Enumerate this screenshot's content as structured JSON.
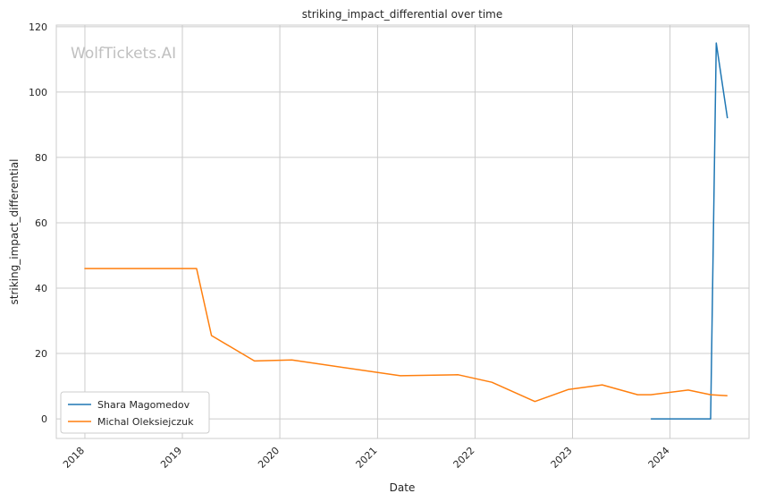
{
  "chart_data": {
    "type": "line",
    "title": "striking_impact_differential over time",
    "xlabel": "Date",
    "ylabel": "striking_impact_differential",
    "watermark": "WolfTickets.AI",
    "x_ticks": [
      "2018",
      "2019",
      "2020",
      "2021",
      "2022",
      "2023",
      "2024"
    ],
    "y_ticks": [
      0,
      20,
      40,
      60,
      80,
      100,
      120
    ],
    "xlim": [
      "2017-09-16",
      "2024-10-23"
    ],
    "ylim": [
      -6,
      120.5
    ],
    "grid": true,
    "legend_position": "lower-left",
    "series": [
      {
        "name": "Shara Magomedov",
        "color": "#1f77b4",
        "points": [
          {
            "x": "2023-10-21",
            "y": 0
          },
          {
            "x": "2024-06-01",
            "y": 0
          },
          {
            "x": "2024-06-22",
            "y": 115
          },
          {
            "x": "2024-08-03",
            "y": 92
          }
        ]
      },
      {
        "name": "Michal Oleksiejczuk",
        "color": "#ff7f0e",
        "points": [
          {
            "x": "2017-12-30",
            "y": 46
          },
          {
            "x": "2019-02-23",
            "y": 46
          },
          {
            "x": "2019-04-20",
            "y": 25.5
          },
          {
            "x": "2019-09-28",
            "y": 17.7
          },
          {
            "x": "2020-02-15",
            "y": 18
          },
          {
            "x": "2021-03-27",
            "y": 13.2
          },
          {
            "x": "2021-10-30",
            "y": 13.5
          },
          {
            "x": "2022-03-05",
            "y": 11.2
          },
          {
            "x": "2022-08-13",
            "y": 5.3
          },
          {
            "x": "2022-12-17",
            "y": 9
          },
          {
            "x": "2023-04-22",
            "y": 10.4
          },
          {
            "x": "2023-09-02",
            "y": 7.4
          },
          {
            "x": "2023-10-21",
            "y": 7.4
          },
          {
            "x": "2024-03-09",
            "y": 8.8
          },
          {
            "x": "2024-06-01",
            "y": 7.4
          },
          {
            "x": "2024-08-03",
            "y": 7.1
          }
        ]
      }
    ]
  }
}
